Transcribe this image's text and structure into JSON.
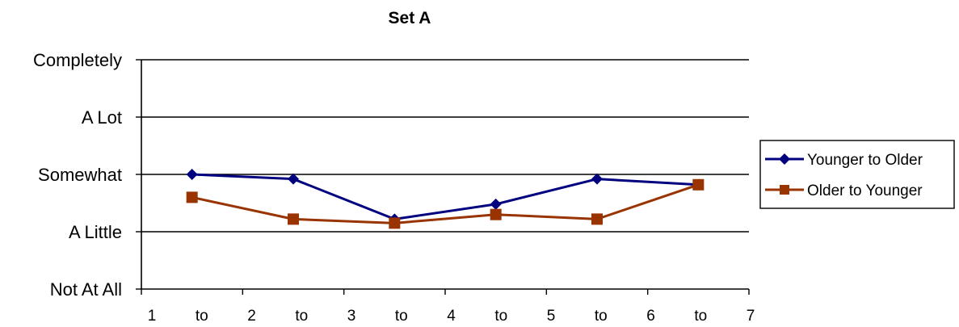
{
  "chart_data": {
    "type": "line",
    "title": "Set A",
    "y_categories": [
      "Not At All",
      "A Little",
      "Somewhat",
      "A Lot",
      "Completely"
    ],
    "ylim": [
      0,
      4
    ],
    "x_tick_labels": [
      "1",
      "to",
      "2",
      "to",
      "3",
      "to",
      "4",
      "to",
      "5",
      "to",
      "6",
      "to",
      "7"
    ],
    "x": [
      "1 to 2",
      "2 to 3",
      "3 to 4",
      "4 to 5",
      "5 to 6",
      "6 to 7"
    ],
    "grid": true,
    "legend_position": "right",
    "series": [
      {
        "name": "Younger to Older",
        "color": "#00007f",
        "marker": "diamond",
        "values": [
          2.0,
          1.92,
          1.22,
          1.48,
          1.92,
          1.82
        ]
      },
      {
        "name": "Older to Younger",
        "color": "#993300",
        "marker": "square",
        "values": [
          1.6,
          1.22,
          1.15,
          1.3,
          1.22,
          1.82
        ]
      }
    ]
  }
}
